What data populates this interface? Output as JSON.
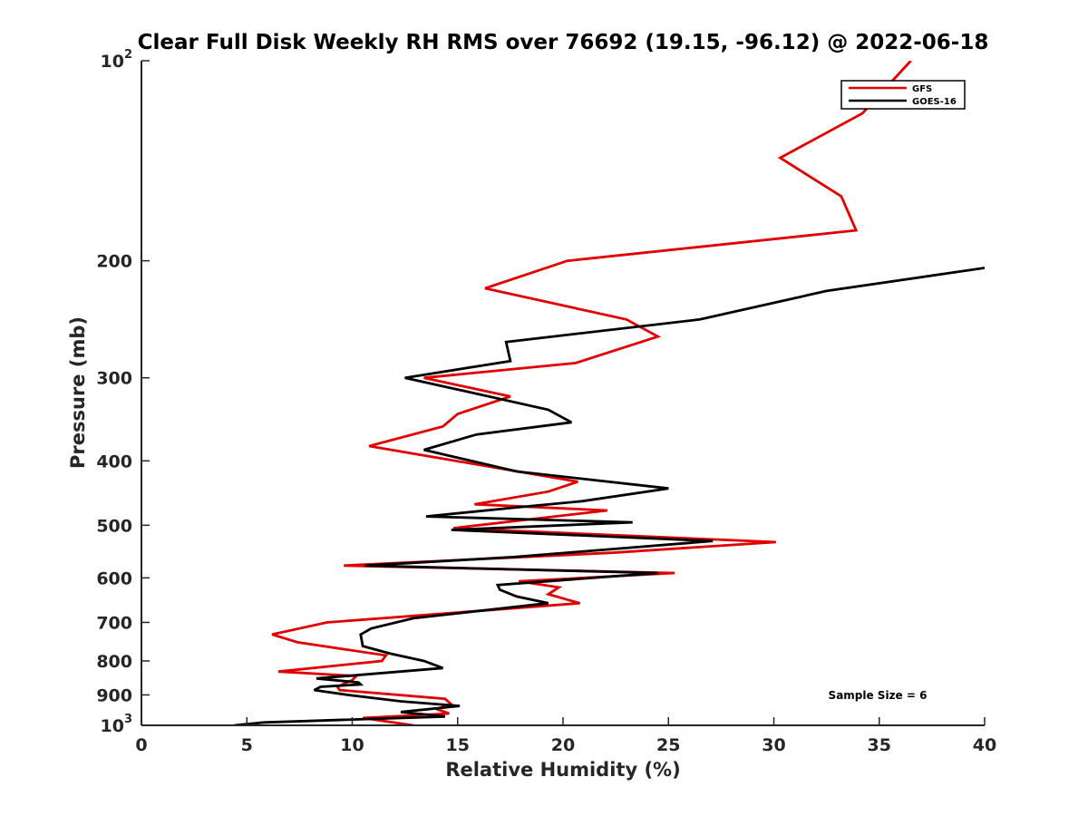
{
  "chart_data": {
    "type": "line",
    "title": "Clear Full Disk Weekly RH RMS over 76692 (19.15, -96.12) @ 2022-06-18",
    "xlabel": "Relative Humidity (%)",
    "ylabel": "Pressure (mb)",
    "xlim": [
      0,
      40
    ],
    "ylim": [
      100,
      1000
    ],
    "yscale": "log",
    "y_reversed": true,
    "grid": false,
    "legend_position": "top-right",
    "x_ticks": [
      0,
      5,
      10,
      15,
      20,
      25,
      30,
      35,
      40
    ],
    "y_ticks": [
      {
        "value": 100,
        "base": "10",
        "exp": "2"
      },
      {
        "value": 200,
        "label": "200"
      },
      {
        "value": 300,
        "label": "300"
      },
      {
        "value": 400,
        "label": "400"
      },
      {
        "value": 500,
        "label": "500"
      },
      {
        "value": 600,
        "label": "600"
      },
      {
        "value": 700,
        "label": "700"
      },
      {
        "value": 800,
        "label": "800"
      },
      {
        "value": 900,
        "label": "900"
      },
      {
        "value": 1000,
        "base": "10",
        "exp": "3"
      }
    ],
    "annotation": "Sample Size = 6",
    "series": [
      {
        "name": "GFS",
        "color": "#e00000",
        "points": [
          [
            36.5,
            100
          ],
          [
            34.2,
            120
          ],
          [
            30.3,
            140
          ],
          [
            33.2,
            160
          ],
          [
            33.9,
            180
          ],
          [
            20.2,
            200
          ],
          [
            16.3,
            220
          ],
          [
            23.0,
            245
          ],
          [
            24.5,
            260
          ],
          [
            20.6,
            285
          ],
          [
            13.4,
            300
          ],
          [
            17.5,
            320
          ],
          [
            15.0,
            340
          ],
          [
            14.3,
            355
          ],
          [
            10.8,
            380
          ],
          [
            20.7,
            430
          ],
          [
            19.3,
            445
          ],
          [
            15.8,
            465
          ],
          [
            22.1,
            475
          ],
          [
            14.8,
            505
          ],
          [
            30.1,
            530
          ],
          [
            22.3,
            550
          ],
          [
            9.6,
            575
          ],
          [
            25.3,
            590
          ],
          [
            17.9,
            607
          ],
          [
            19.8,
            620
          ],
          [
            19.3,
            635
          ],
          [
            20.8,
            655
          ],
          [
            8.8,
            700
          ],
          [
            6.2,
            730
          ],
          [
            7.4,
            750
          ],
          [
            11.6,
            785
          ],
          [
            11.4,
            800
          ],
          [
            6.5,
            830
          ],
          [
            10.2,
            843
          ],
          [
            10.0,
            855
          ],
          [
            9.3,
            875
          ],
          [
            9.4,
            885
          ],
          [
            14.4,
            912
          ],
          [
            14.7,
            930
          ],
          [
            14.0,
            945
          ],
          [
            14.6,
            960
          ],
          [
            10.5,
            975
          ],
          [
            12.9,
            1000
          ]
        ]
      },
      {
        "name": "GOES-16",
        "color": "#000000",
        "points": [
          [
            40.0,
            205
          ],
          [
            32.5,
            222
          ],
          [
            26.5,
            245
          ],
          [
            17.3,
            265
          ],
          [
            17.5,
            283
          ],
          [
            12.5,
            300
          ],
          [
            19.3,
            335
          ],
          [
            20.4,
            350
          ],
          [
            15.9,
            365
          ],
          [
            13.4,
            385
          ],
          [
            17.8,
            415
          ],
          [
            25.0,
            440
          ],
          [
            20.9,
            460
          ],
          [
            17.8,
            470
          ],
          [
            13.5,
            485
          ],
          [
            23.3,
            495
          ],
          [
            14.7,
            508
          ],
          [
            27.1,
            528
          ],
          [
            17.7,
            558
          ],
          [
            10.6,
            575
          ],
          [
            24.5,
            590
          ],
          [
            16.9,
            615
          ],
          [
            17.0,
            625
          ],
          [
            17.8,
            640
          ],
          [
            19.3,
            655
          ],
          [
            12.9,
            690
          ],
          [
            10.9,
            715
          ],
          [
            10.4,
            730
          ],
          [
            10.5,
            760
          ],
          [
            11.8,
            780
          ],
          [
            13.4,
            800
          ],
          [
            14.3,
            820
          ],
          [
            8.3,
            850
          ],
          [
            10.3,
            862
          ],
          [
            10.4,
            868
          ],
          [
            8.5,
            875
          ],
          [
            8.2,
            885
          ],
          [
            9.8,
            900
          ],
          [
            12.3,
            920
          ],
          [
            15.1,
            935
          ],
          [
            12.3,
            955
          ],
          [
            14.4,
            970
          ],
          [
            5.8,
            990
          ],
          [
            4.4,
            1000
          ]
        ]
      }
    ]
  }
}
